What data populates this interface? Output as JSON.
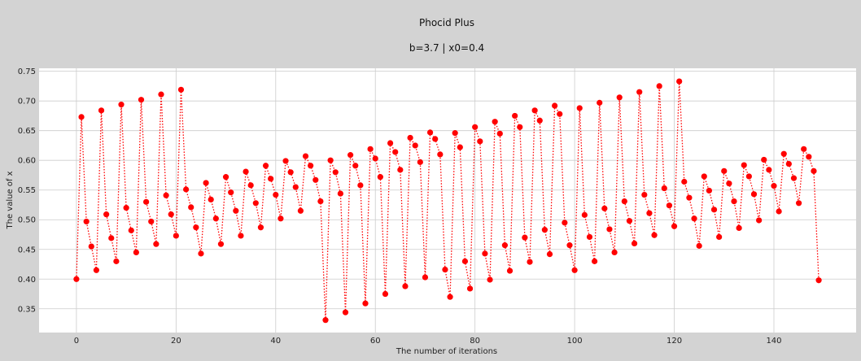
{
  "chart_data": {
    "type": "line",
    "title": "Phocid Plus",
    "subtitle": "b=3.7  |  x0=0.4",
    "xlabel": "The number of iterations",
    "ylabel": "The value of x",
    "xlim": [
      -7.5,
      156.5
    ],
    "ylim": [
      0.31,
      0.755
    ],
    "xticks": [
      0,
      20,
      40,
      60,
      80,
      100,
      120,
      140
    ],
    "yticks": [
      0.35,
      0.4,
      0.45,
      0.5,
      0.55,
      0.6,
      0.65,
      0.7,
      0.75
    ],
    "grid": true,
    "line_style": "dotted",
    "colors": {
      "series": "#ff0000",
      "plot_bg": "#ffffff",
      "page_bg": "#d3d3d3",
      "grid": "#cccccc"
    },
    "x": [
      0,
      1,
      2,
      3,
      4,
      5,
      6,
      7,
      8,
      9,
      10,
      11,
      12,
      13,
      14,
      15,
      16,
      17,
      18,
      19,
      20,
      21,
      22,
      23,
      24,
      25,
      26,
      27,
      28,
      29,
      30,
      31,
      32,
      33,
      34,
      35,
      36,
      37,
      38,
      39,
      40,
      41,
      42,
      43,
      44,
      45,
      46,
      47,
      48,
      49,
      50,
      51,
      52,
      53,
      54,
      55,
      56,
      57,
      58,
      59,
      60,
      61,
      62,
      63,
      64,
      65,
      66,
      67,
      68,
      69,
      70,
      71,
      72,
      73,
      74,
      75,
      76,
      77,
      78,
      79,
      80,
      81,
      82,
      83,
      84,
      85,
      86,
      87,
      88,
      89,
      90,
      91,
      92,
      93,
      94,
      95,
      96,
      97,
      98,
      99,
      100,
      101,
      102,
      103,
      104,
      105,
      106,
      107,
      108,
      109,
      110,
      111,
      112,
      113,
      114,
      115,
      116,
      117,
      118,
      119,
      120,
      121,
      122,
      123,
      124,
      125,
      126,
      127,
      128,
      129,
      130,
      131,
      132,
      133,
      134,
      135,
      136,
      137,
      138,
      139,
      140,
      141,
      142,
      143,
      144,
      145,
      146,
      147,
      148,
      149
    ],
    "series": [
      {
        "values": [
          0.4,
          0.673,
          0.497,
          0.455,
          0.415,
          0.684,
          0.509,
          0.469,
          0.43,
          0.694,
          0.52,
          0.482,
          0.445,
          0.702,
          0.53,
          0.497,
          0.459,
          0.711,
          0.541,
          0.509,
          0.473,
          0.719,
          0.551,
          0.521,
          0.487,
          0.443,
          0.562,
          0.534,
          0.502,
          0.459,
          0.572,
          0.546,
          0.515,
          0.473,
          0.581,
          0.558,
          0.528,
          0.487,
          0.591,
          0.569,
          0.542,
          0.502,
          0.599,
          0.58,
          0.555,
          0.515,
          0.607,
          0.591,
          0.567,
          0.531,
          0.331,
          0.6,
          0.58,
          0.544,
          0.344,
          0.609,
          0.591,
          0.558,
          0.359,
          0.619,
          0.603,
          0.572,
          0.375,
          0.629,
          0.614,
          0.584,
          0.388,
          0.638,
          0.625,
          0.597,
          0.403,
          0.647,
          0.636,
          0.61,
          0.416,
          0.37,
          0.646,
          0.622,
          0.43,
          0.384,
          0.656,
          0.632,
          0.443,
          0.399,
          0.665,
          0.645,
          0.457,
          0.414,
          0.675,
          0.656,
          0.47,
          0.429,
          0.684,
          0.667,
          0.483,
          0.442,
          0.692,
          0.678,
          0.495,
          0.457,
          0.415,
          0.688,
          0.508,
          0.471,
          0.43,
          0.697,
          0.519,
          0.484,
          0.445,
          0.706,
          0.531,
          0.498,
          0.46,
          0.715,
          0.542,
          0.511,
          0.474,
          0.725,
          0.553,
          0.524,
          0.489,
          0.733,
          0.564,
          0.537,
          0.502,
          0.456,
          0.573,
          0.549,
          0.517,
          0.471,
          0.582,
          0.561,
          0.531,
          0.486,
          0.592,
          0.573,
          0.543,
          0.499,
          0.601,
          0.584,
          0.557,
          0.514,
          0.611,
          0.594,
          0.57,
          0.528,
          0.619,
          0.606,
          0.582,
          0.398
        ]
      }
    ]
  }
}
